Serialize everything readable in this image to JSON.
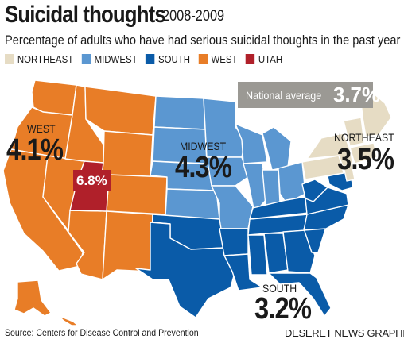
{
  "title": "Suicidal thoughts",
  "years": "2008-2009",
  "subtitle": "Percentage of adults who have had serious suicidal thoughts in the past year",
  "legend": [
    {
      "label": "NORTHEAST",
      "color": "#e6dcc4"
    },
    {
      "label": "MIDWEST",
      "color": "#5b97d1"
    },
    {
      "label": "SOUTH",
      "color": "#0a5ba8"
    },
    {
      "label": "WEST",
      "color": "#e87d27"
    },
    {
      "label": "UTAH",
      "color": "#b0202a"
    }
  ],
  "national": {
    "label": "National average",
    "value": "3.7%"
  },
  "regions": {
    "west": {
      "label": "WEST",
      "value": "4.1%"
    },
    "midwest": {
      "label": "MIDWEST",
      "value": "4.3%"
    },
    "northeast": {
      "label": "NORTHEAST",
      "value": "3.5%"
    },
    "south": {
      "label": "SOUTH",
      "value": "3.2%"
    },
    "utah": {
      "value": "6.8%"
    }
  },
  "source": "Source: Centers for Disease Control and Prevention",
  "credit": "DESERET NEWS GRAPHIC"
}
